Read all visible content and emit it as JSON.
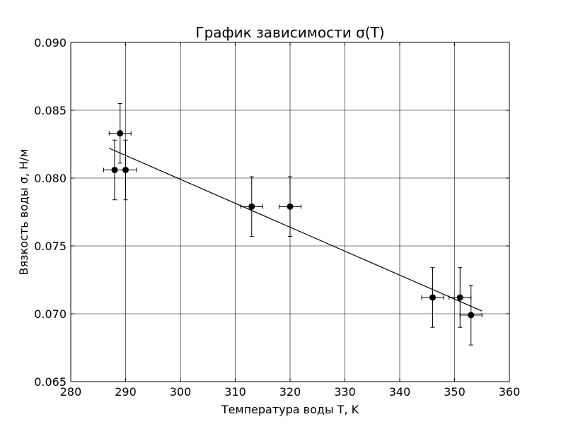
{
  "chart_data": {
    "type": "scatter",
    "title": "График зависимости σ(T)",
    "xlabel": "Температура воды T, K",
    "ylabel": "Вязкость воды σ, Н/м",
    "xlim": [
      280,
      360
    ],
    "ylim": [
      0.065,
      0.09
    ],
    "x_ticks": [
      280,
      290,
      300,
      310,
      320,
      330,
      340,
      350,
      360
    ],
    "y_ticks": [
      0.065,
      0.07,
      0.075,
      0.08,
      0.085,
      0.09
    ],
    "x_tick_labels": [
      "280",
      "290",
      "300",
      "310",
      "320",
      "330",
      "340",
      "350",
      "360"
    ],
    "y_tick_labels": [
      "0.065",
      "0.070",
      "0.075",
      "0.080",
      "0.085",
      "0.090"
    ],
    "grid": true,
    "point_color": "#000000",
    "line_color": "#000000",
    "series": [
      {
        "points": [
          {
            "x": 288,
            "y": 0.0806,
            "xerr": 2,
            "yerr": 0.0022
          },
          {
            "x": 289,
            "y": 0.0833,
            "xerr": 2,
            "yerr": 0.0022
          },
          {
            "x": 290,
            "y": 0.0806,
            "xerr": 2,
            "yerr": 0.0022
          },
          {
            "x": 313,
            "y": 0.0779,
            "xerr": 2,
            "yerr": 0.0022
          },
          {
            "x": 320,
            "y": 0.0779,
            "xerr": 2,
            "yerr": 0.0022
          },
          {
            "x": 346,
            "y": 0.0712,
            "xerr": 2,
            "yerr": 0.0022
          },
          {
            "x": 351,
            "y": 0.0712,
            "xerr": 2,
            "yerr": 0.0022
          },
          {
            "x": 353,
            "y": 0.0699,
            "xerr": 2,
            "yerr": 0.0022
          }
        ]
      }
    ],
    "fit_line": {
      "x": [
        287,
        355
      ],
      "y": [
        0.0822,
        0.0702
      ]
    }
  }
}
